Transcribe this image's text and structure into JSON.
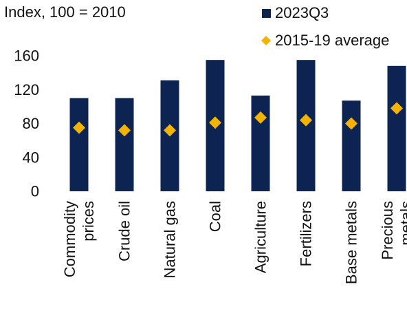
{
  "chart_data": {
    "type": "bar",
    "unit_label": "Index, 100 = 2010",
    "categories": [
      [
        "Commodity",
        "prices"
      ],
      [
        "Crude oil"
      ],
      [
        "Natural gas"
      ],
      [
        "Coal"
      ],
      [
        "Agriculture"
      ],
      [
        "Fertilizers"
      ],
      [
        "Base metals"
      ],
      [
        "Precious",
        "metals"
      ]
    ],
    "series": [
      {
        "name": "2023Q3",
        "type": "bar",
        "color": "#0d2452",
        "values": [
          110,
          110,
          131,
          155,
          113,
          155,
          107,
          148
        ]
      },
      {
        "name": "2015-19 average",
        "type": "marker",
        "marker": "diamond",
        "color": "#f5b301",
        "values": [
          75,
          72,
          72,
          81,
          87,
          84,
          80,
          98
        ]
      }
    ],
    "yticks": [
      0,
      40,
      80,
      120,
      160
    ],
    "ylim": [
      0,
      160
    ],
    "grid": false,
    "legend_position": "top-right"
  }
}
